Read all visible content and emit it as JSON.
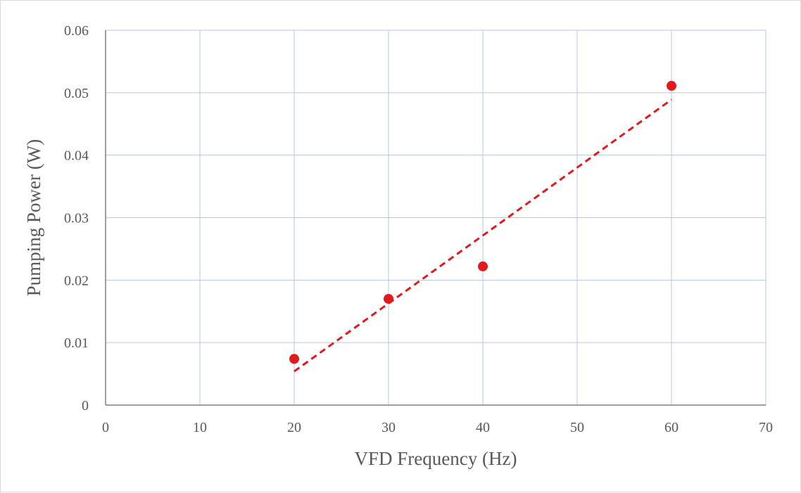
{
  "chart_data": {
    "type": "scatter",
    "xlabel": "VFD Frequency (Hz)",
    "ylabel": "Pumping Power (W)",
    "xlim": [
      0,
      70
    ],
    "ylim": [
      0,
      0.06
    ],
    "x_ticks": [
      "0",
      "10",
      "20",
      "30",
      "40",
      "50",
      "60",
      "70"
    ],
    "y_ticks": [
      "0",
      "0.01",
      "0.02",
      "0.03",
      "0.04",
      "0.05",
      "0.06"
    ],
    "grid": true,
    "legend": "none",
    "series": [
      {
        "points": [
          {
            "x": 20,
            "y": 0.0074
          },
          {
            "x": 30,
            "y": 0.017
          },
          {
            "x": 40,
            "y": 0.0222
          },
          {
            "x": 60,
            "y": 0.0511
          }
        ],
        "color": "#e31a1c",
        "marker": "circle",
        "trendline": {
          "type": "linear",
          "style": "dashed",
          "color": "#e31a1c",
          "x_start": 20,
          "y_start": 0.0054,
          "x_end": 60,
          "y_end": 0.0489
        }
      }
    ],
    "colors": {
      "grid": "#b4c7e7",
      "axis": "#7f7f7f",
      "text": "#595959"
    }
  }
}
